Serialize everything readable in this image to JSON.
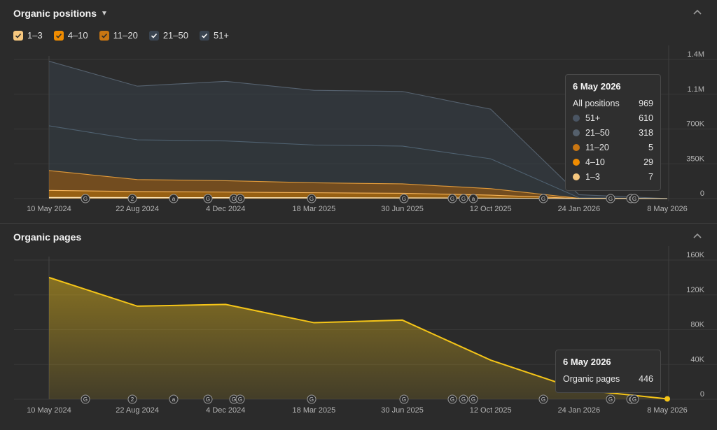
{
  "panel1": {
    "title": "Organic positions",
    "legend": [
      {
        "label": "1–3",
        "color": "#f6c77e",
        "checked": true
      },
      {
        "label": "4–10",
        "color": "#f08c00",
        "checked": true
      },
      {
        "label": "11–20",
        "color": "#c97612",
        "checked": true
      },
      {
        "label": "21–50",
        "color": "#3a4450",
        "checked": true
      },
      {
        "label": "51+",
        "color": "#3a4450",
        "checked": true
      }
    ],
    "tooltip": {
      "date": "6 May 2026",
      "rows": [
        {
          "label": "All positions",
          "value": "969",
          "color": ""
        },
        {
          "label": "51+",
          "value": "610",
          "color": "#4a5563"
        },
        {
          "label": "21–50",
          "value": "318",
          "color": "#55606c"
        },
        {
          "label": "11–20",
          "value": "5",
          "color": "#c97612"
        },
        {
          "label": "4–10",
          "value": "29",
          "color": "#f08c00"
        },
        {
          "label": "1–3",
          "value": "7",
          "color": "#f6c77e"
        }
      ]
    }
  },
  "panel2": {
    "title": "Organic pages",
    "tooltip": {
      "date": "6 May 2026",
      "label": "Organic pages",
      "value": "446"
    }
  },
  "chart_data": [
    {
      "type": "area",
      "stacked": true,
      "title": "Organic positions",
      "x": [
        "10 May 2024",
        "22 Aug 2024",
        "4 Dec 2024",
        "18 Mar 2025",
        "30 Jun 2025",
        "12 Oct 2025",
        "24 Jan 2026",
        "8 May 2026"
      ],
      "xticks": [
        "10 May 2024",
        "22 Aug 2024",
        "4 Dec 2024",
        "18 Mar 2025",
        "30 Jun 2025",
        "12 Oct 2025",
        "24 Jan 2026",
        "8 May 2026"
      ],
      "yticks": [
        "1.4M",
        "1.1M",
        "700K",
        "350K",
        "0"
      ],
      "ylim": [
        0,
        1400000
      ],
      "series": [
        {
          "name": "1–3",
          "values": [
            12000,
            11000,
            10000,
            9000,
            8000,
            5000,
            300,
            7
          ]
        },
        {
          "name": "4–10",
          "values": [
            70000,
            60000,
            55000,
            50000,
            45000,
            30000,
            1000,
            29
          ]
        },
        {
          "name": "11–20",
          "values": [
            200000,
            120000,
            115000,
            100000,
            95000,
            65000,
            1500,
            5
          ]
        },
        {
          "name": "21–50",
          "values": [
            450000,
            400000,
            400000,
            380000,
            380000,
            300000,
            6000,
            318
          ]
        },
        {
          "name": "51+",
          "values": [
            650000,
            540000,
            600000,
            550000,
            550000,
            500000,
            30000,
            610
          ]
        }
      ],
      "markers": [
        "G",
        "2",
        "a",
        "G",
        "G",
        "G",
        "G",
        "G",
        "G",
        "G",
        "a",
        "G",
        "G",
        "G",
        "G"
      ],
      "grid": true
    },
    {
      "type": "area",
      "title": "Organic pages",
      "x": [
        "10 May 2024",
        "22 Aug 2024",
        "4 Dec 2024",
        "18 Mar 2025",
        "30 Jun 2025",
        "12 Oct 2025",
        "24 Jan 2026",
        "8 May 2026"
      ],
      "xticks": [
        "10 May 2024",
        "22 Aug 2024",
        "4 Dec 2024",
        "18 Mar 2025",
        "30 Jun 2025",
        "12 Oct 2025",
        "24 Jan 2026",
        "8 May 2026"
      ],
      "yticks": [
        "160K",
        "120K",
        "80K",
        "40K",
        "0"
      ],
      "ylim": [
        0,
        160000
      ],
      "series": [
        {
          "name": "Organic pages",
          "values": [
            140000,
            107000,
            109000,
            88000,
            91000,
            45000,
            11000,
            446
          ]
        }
      ],
      "markers": [
        "G",
        "2",
        "a",
        "G",
        "G",
        "G",
        "G",
        "G",
        "G",
        "G",
        "G",
        "G",
        "G",
        "G",
        "G"
      ],
      "grid": true,
      "color": "#f5c518"
    }
  ]
}
